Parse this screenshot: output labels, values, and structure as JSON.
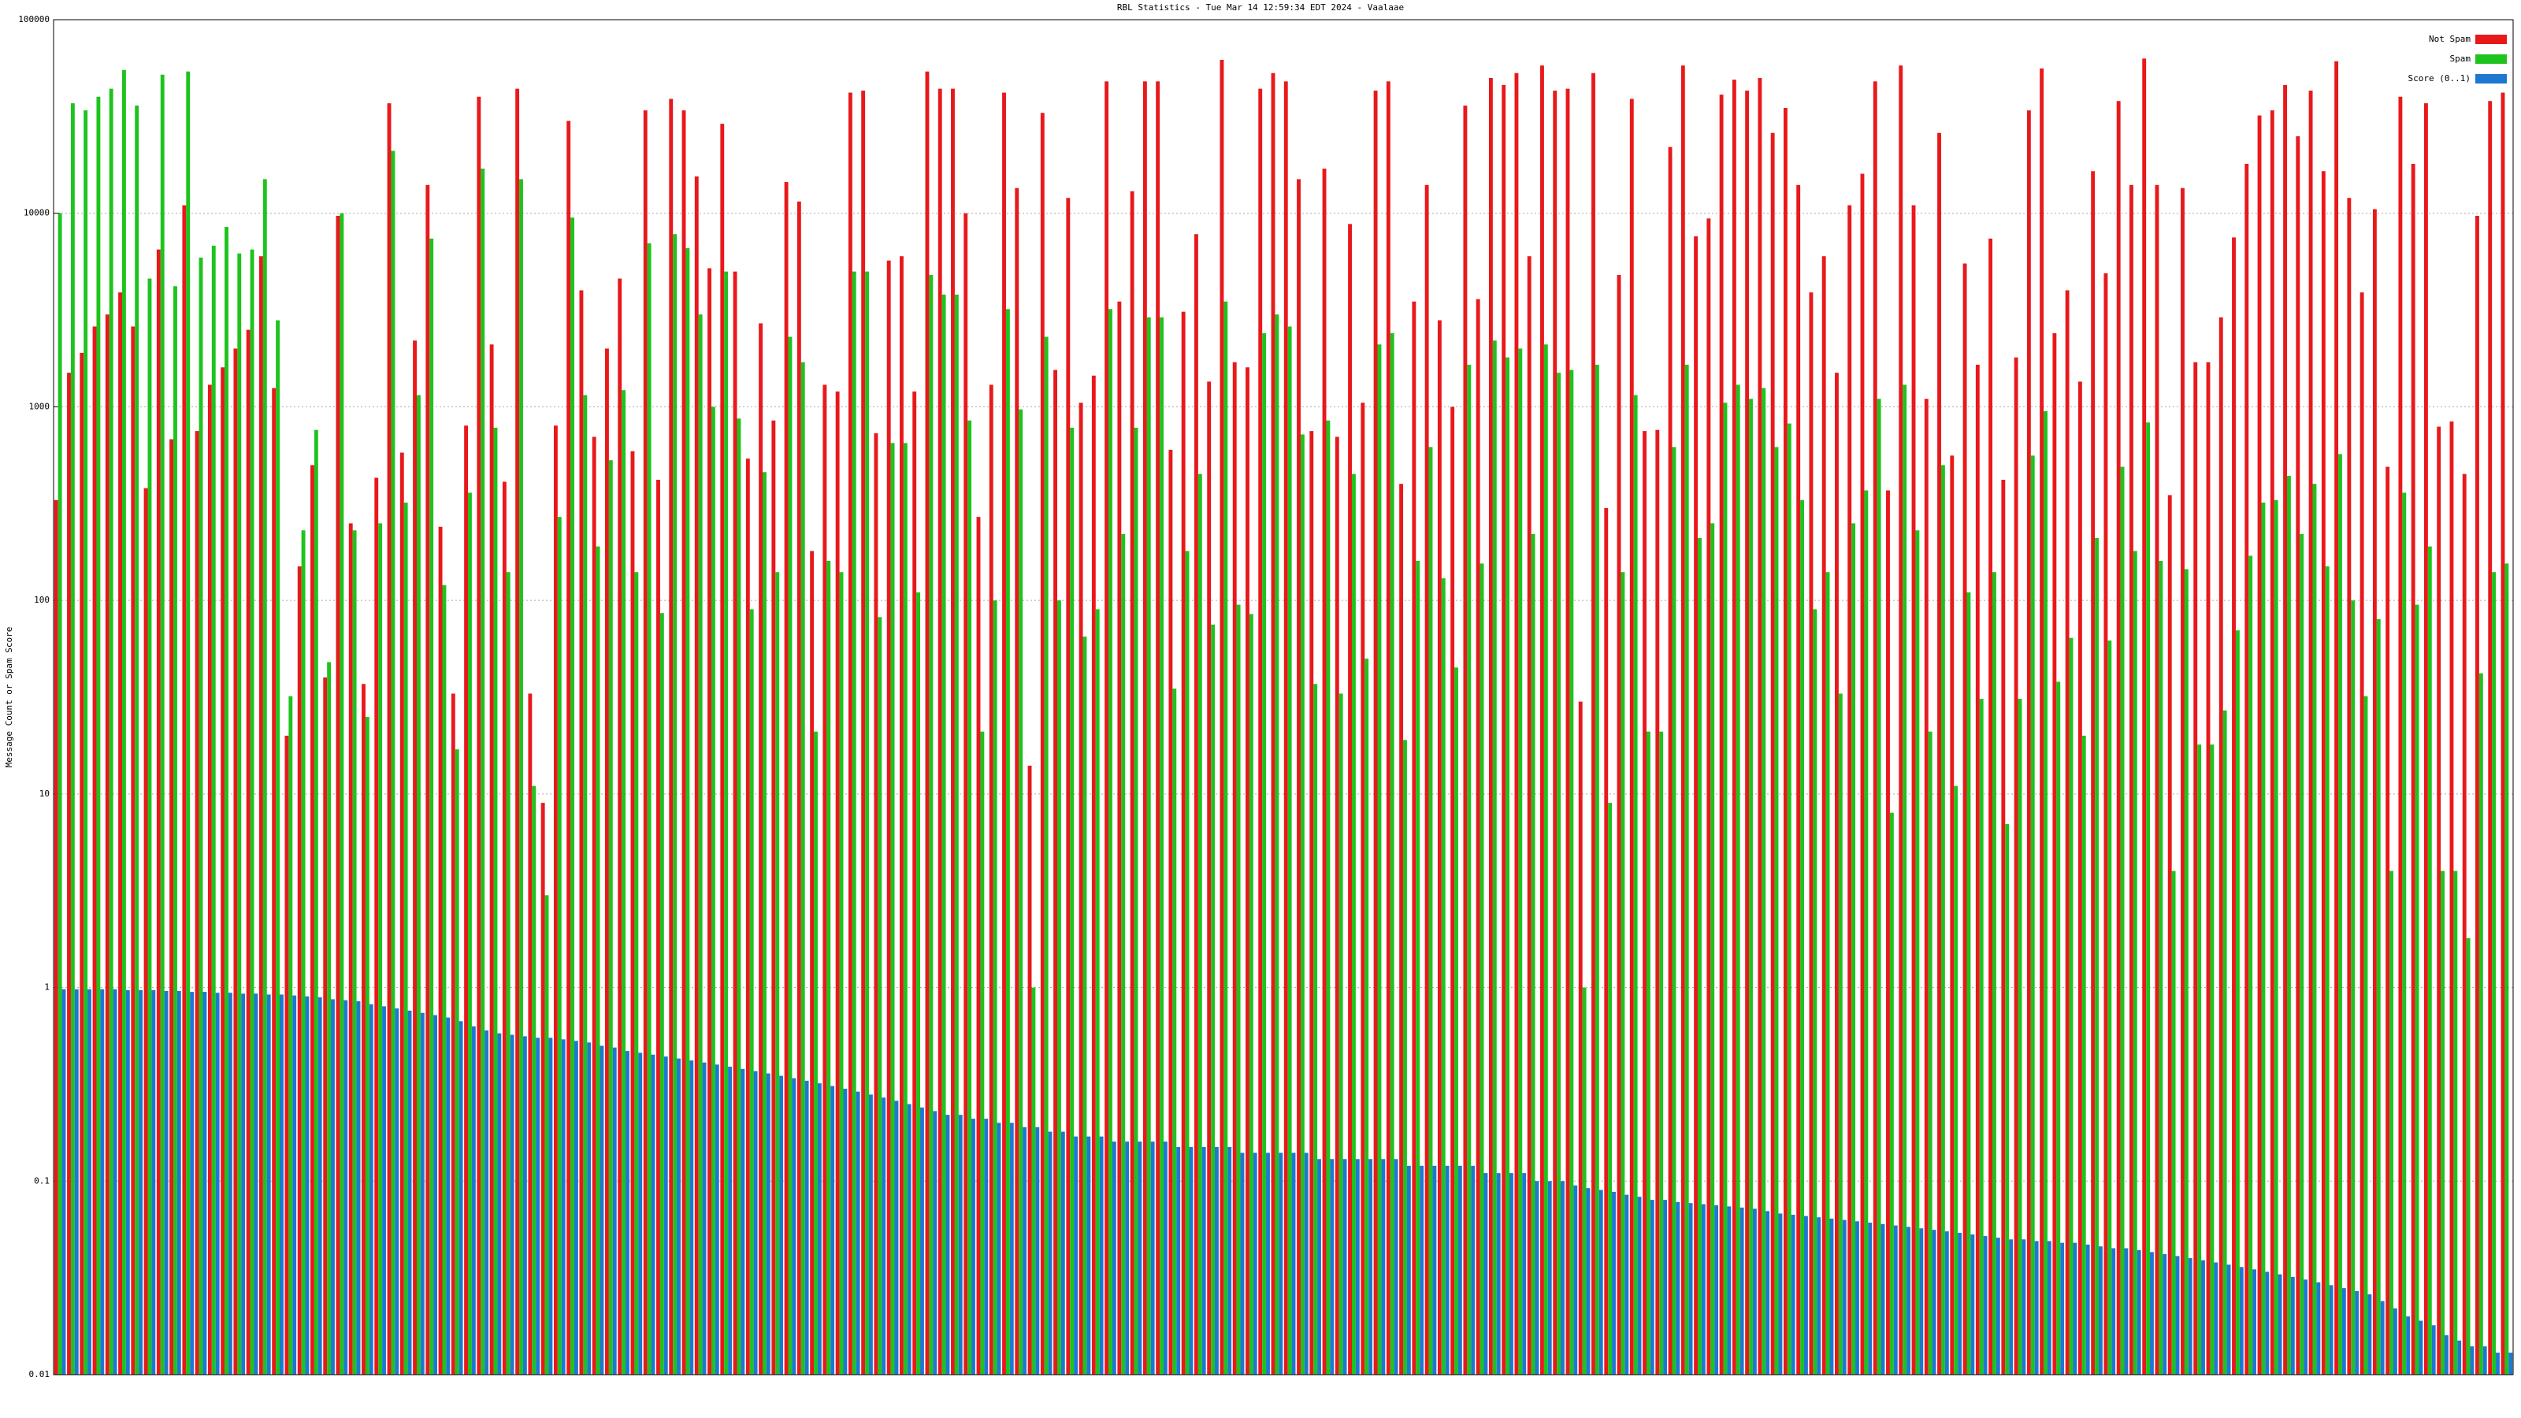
{
  "chart_data": {
    "type": "bar",
    "title": "RBL Statistics - Tue Mar 14 12:59:34 EDT 2024 - Vaalaae",
    "y_label": "Message Count or Spam Score",
    "log_scale": true,
    "grid": true,
    "legend": "upper right",
    "ylim": [
      0.01,
      100000
    ],
    "yticks": [
      0.01,
      0.1,
      1,
      10,
      100,
      1000,
      10000,
      100000
    ],
    "categories": [
      null,
      null,
      null,
      null,
      null,
      null,
      null,
      null,
      null,
      null,
      null,
      null,
      null,
      null,
      null,
      null,
      null,
      null,
      null,
      null,
      null,
      null,
      null,
      null,
      null,
      null,
      null,
      null,
      null,
      null,
      null,
      null,
      null,
      null,
      null,
      null,
      null,
      null,
      null,
      null,
      null,
      null,
      null,
      null,
      null,
      null,
      null,
      null,
      null,
      null,
      null,
      null,
      null,
      null,
      null,
      null,
      null,
      null,
      null,
      null,
      null,
      null,
      null,
      null,
      null,
      null,
      null,
      null,
      null,
      null,
      null,
      null,
      null,
      null,
      null,
      null,
      null,
      null,
      null,
      null,
      null,
      null,
      null,
      null,
      null,
      null,
      null,
      null,
      null,
      null,
      null,
      null,
      null,
      null,
      null,
      null,
      null,
      null,
      null,
      null,
      null,
      null,
      null,
      null,
      null,
      null,
      null,
      null,
      null,
      null,
      null,
      null,
      null,
      null,
      null,
      null,
      null,
      null,
      null,
      null,
      null,
      null,
      null,
      null,
      null,
      null,
      null,
      null,
      null,
      null,
      null,
      null,
      null,
      null,
      null,
      null,
      null,
      null,
      null,
      null,
      null,
      null,
      null,
      null,
      null,
      null,
      null,
      null,
      null,
      null,
      null,
      null,
      null,
      null,
      null,
      null,
      null,
      null,
      null,
      null,
      null,
      null,
      null,
      null,
      null,
      null,
      null,
      null,
      null,
      null,
      null,
      null,
      null,
      null,
      null,
      null,
      null,
      null,
      null,
      null,
      null,
      null,
      null,
      null,
      null,
      null,
      null,
      null,
      null,
      null,
      null,
      null
    ],
    "series": [
      {
        "name": "Not Spam",
        "color": "#e8191b",
        "values": [
          330,
          1500,
          1900,
          2600,
          3000,
          3900,
          2600,
          380,
          6500,
          680,
          11000,
          750,
          1300,
          1600,
          2000,
          2500,
          6000,
          1250,
          20,
          150,
          500,
          40,
          9700,
          250,
          37,
          430,
          37000,
          580,
          2200,
          14000,
          240,
          33,
          800,
          40000,
          2100,
          410,
          44000,
          33,
          9,
          800,
          30000,
          4000,
          700,
          2000,
          4600,
          590,
          34000,
          420,
          39000,
          34000,
          15500,
          5200,
          29000,
          5000,
          540,
          2700,
          850,
          14500,
          11500,
          180,
          1300,
          1200,
          42000,
          43000,
          730,
          5700,
          6000,
          1200,
          54000,
          44000,
          44000,
          10000,
          270,
          1300,
          42000,
          13500,
          14,
          33000,
          1550,
          12000,
          1050,
          1450,
          48000,
          3500,
          13000,
          48000,
          48000,
          600,
          3100,
          7800,
          1350,
          62000,
          1700,
          1600,
          44000,
          53000,
          48000,
          15000,
          750,
          17000,
          700,
          8800,
          1050,
          43000,
          48000,
          400,
          3500,
          14000,
          2800,
          1000,
          36000,
          3600,
          50000,
          46000,
          53000,
          6000,
          58000,
          43000,
          44000,
          30,
          53000,
          300,
          4800,
          39000,
          750,
          760,
          22000,
          58000,
          7600,
          9400,
          41000,
          49000,
          43000,
          50000,
          26000,
          35000,
          14000,
          3900,
          6000,
          1500,
          11000,
          16000,
          48000,
          370,
          58000,
          11000,
          1100,
          26000,
          560,
          5500,
          1650,
          7400,
          420,
          1800,
          34000,
          56000,
          2400,
          4000,
          1350,
          16500,
          4900,
          38000,
          14000,
          63000,
          14000,
          350,
          13500,
          1700,
          1700,
          2900,
          7500,
          18000,
          32000,
          34000,
          46000,
          25000,
          43000,
          16500,
          61000,
          12000,
          3900,
          10500,
          490,
          40000,
          18000,
          37000,
          790,
          840,
          450,
          9700,
          38000,
          42000
        ]
      },
      {
        "name": "Spam",
        "color": "#1ec31e",
        "values": [
          10000,
          37000,
          34000,
          40000,
          44000,
          55000,
          36000,
          4600,
          52000,
          4200,
          54000,
          5900,
          6800,
          8500,
          6200,
          6500,
          15000,
          2800,
          32,
          230,
          760,
          48,
          10000,
          230,
          25,
          250,
          21000,
          320,
          1150,
          7400,
          120,
          17,
          360,
          17000,
          780,
          140,
          15000,
          11,
          3,
          270,
          9500,
          1150,
          190,
          530,
          1220,
          140,
          7000,
          86,
          7800,
          6600,
          3000,
          1000,
          5000,
          870,
          90,
          460,
          140,
          2300,
          1700,
          21,
          160,
          140,
          5000,
          5000,
          82,
          650,
          650,
          110,
          4800,
          3800,
          3800,
          850,
          21,
          100,
          3200,
          970,
          1,
          2300,
          100,
          780,
          65,
          90,
          3200,
          220,
          780,
          2900,
          2900,
          35,
          180,
          450,
          75,
          3500,
          95,
          85,
          2400,
          3000,
          2600,
          720,
          37,
          850,
          33,
          450,
          50,
          2100,
          2400,
          19,
          160,
          620,
          130,
          45,
          1650,
          155,
          2200,
          1800,
          2000,
          220,
          2100,
          1500,
          1550,
          1,
          1650,
          9,
          140,
          1150,
          21,
          21,
          620,
          1650,
          210,
          250,
          1050,
          1300,
          1100,
          1250,
          620,
          820,
          330,
          90,
          140,
          33,
          250,
          370,
          1100,
          8,
          1300,
          230,
          21,
          500,
          11,
          110,
          31,
          140,
          7,
          31,
          560,
          950,
          38,
          64,
          20,
          210,
          62,
          490,
          180,
          830,
          160,
          4,
          145,
          18,
          18,
          27,
          70,
          170,
          320,
          330,
          440,
          220,
          400,
          150,
          570,
          100,
          32,
          80,
          4,
          360,
          95,
          190,
          4,
          4,
          1.8,
          42,
          140,
          155
        ]
      },
      {
        "name": "Score (0..1)",
        "color": "#1e78d2",
        "values": [
          0.98,
          0.98,
          0.98,
          0.98,
          0.98,
          0.97,
          0.97,
          0.97,
          0.96,
          0.96,
          0.95,
          0.95,
          0.94,
          0.94,
          0.93,
          0.93,
          0.92,
          0.92,
          0.91,
          0.9,
          0.89,
          0.87,
          0.86,
          0.85,
          0.82,
          0.8,
          0.78,
          0.76,
          0.74,
          0.72,
          0.7,
          0.67,
          0.63,
          0.6,
          0.58,
          0.57,
          0.56,
          0.55,
          0.55,
          0.54,
          0.53,
          0.52,
          0.5,
          0.49,
          0.47,
          0.46,
          0.45,
          0.44,
          0.43,
          0.42,
          0.41,
          0.4,
          0.39,
          0.38,
          0.37,
          0.36,
          0.35,
          0.34,
          0.33,
          0.32,
          0.31,
          0.3,
          0.29,
          0.28,
          0.27,
          0.26,
          0.25,
          0.24,
          0.23,
          0.22,
          0.22,
          0.21,
          0.21,
          0.2,
          0.2,
          0.19,
          0.19,
          0.18,
          0.18,
          0.17,
          0.17,
          0.17,
          0.16,
          0.16,
          0.16,
          0.16,
          0.16,
          0.15,
          0.15,
          0.15,
          0.15,
          0.15,
          0.14,
          0.14,
          0.14,
          0.14,
          0.14,
          0.14,
          0.13,
          0.13,
          0.13,
          0.13,
          0.13,
          0.13,
          0.13,
          0.12,
          0.12,
          0.12,
          0.12,
          0.12,
          0.12,
          0.11,
          0.11,
          0.11,
          0.11,
          0.1,
          0.1,
          0.1,
          0.095,
          0.092,
          0.09,
          0.088,
          0.085,
          0.083,
          0.08,
          0.08,
          0.078,
          0.077,
          0.076,
          0.075,
          0.074,
          0.073,
          0.072,
          0.07,
          0.068,
          0.067,
          0.066,
          0.065,
          0.064,
          0.063,
          0.062,
          0.061,
          0.06,
          0.059,
          0.058,
          0.057,
          0.056,
          0.055,
          0.054,
          0.053,
          0.052,
          0.051,
          0.05,
          0.05,
          0.049,
          0.049,
          0.048,
          0.048,
          0.047,
          0.046,
          0.045,
          0.045,
          0.044,
          0.043,
          0.042,
          0.041,
          0.04,
          0.039,
          0.038,
          0.037,
          0.036,
          0.035,
          0.034,
          0.033,
          0.032,
          0.031,
          0.03,
          0.029,
          0.028,
          0.027,
          0.026,
          0.024,
          0.022,
          0.02,
          0.019,
          0.018,
          0.016,
          0.015,
          0.014,
          0.014,
          0.013,
          0.013
        ]
      }
    ]
  }
}
